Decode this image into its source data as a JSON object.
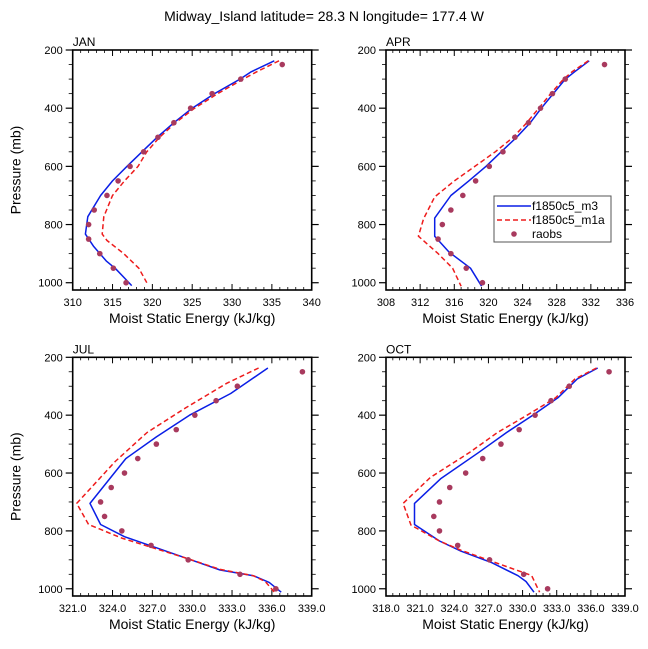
{
  "title": "Midway_Island  latitude= 28.3 N longitude= 177.4 W",
  "colors": {
    "m3": "#0a1ee6",
    "m1a": "#ee1c1c",
    "raobs": "#a83a5e",
    "axis": "#000000"
  },
  "legend": {
    "entries": [
      {
        "name": "f1850c5_m3",
        "style": "solid"
      },
      {
        "name": "f1850c5_m1a",
        "style": "dashed"
      },
      {
        "name": "raobs",
        "style": "marker"
      }
    ],
    "panel": "APR",
    "placement": "center-right"
  },
  "chart_data": [
    {
      "type": "line",
      "panel": "JAN",
      "title": "JAN",
      "xlabel": "Moist Static Energy (kJ/kg)",
      "ylabel": "Pressure (mb)",
      "xlim": [
        310,
        340
      ],
      "ylim": [
        1025,
        200
      ],
      "y_inverted": true,
      "xticks": [
        310,
        315,
        320,
        325,
        330,
        335,
        340
      ],
      "xtick_labels": [
        "310",
        "315",
        "320",
        "325",
        "330",
        "335",
        "340"
      ],
      "yticks": [
        200,
        400,
        600,
        800,
        1000
      ],
      "ytick_labels": [
        "200",
        "400",
        "600",
        "800",
        "1000"
      ],
      "series": [
        {
          "name": "f1850c5_m3",
          "style": "solid",
          "points": [
            [
              335.3,
              237
            ],
            [
              332.4,
              275
            ],
            [
              331.0,
              300
            ],
            [
              327.8,
              350
            ],
            [
              325.0,
              400
            ],
            [
              322.7,
              450
            ],
            [
              320.6,
              500
            ],
            [
              318.7,
              550
            ],
            [
              316.8,
              600
            ],
            [
              315.0,
              650
            ],
            [
              313.5,
              700
            ],
            [
              311.9,
              773
            ],
            [
              311.6,
              833
            ],
            [
              312.6,
              874
            ],
            [
              314.2,
              925
            ],
            [
              315.4,
              952
            ],
            [
              317.4,
              1010
            ]
          ]
        },
        {
          "name": "f1850c5_m1a",
          "style": "dashed",
          "points": [
            [
              335.9,
              237
            ],
            [
              333.1,
              275
            ],
            [
              331.4,
              300
            ],
            [
              328.2,
              350
            ],
            [
              325.3,
              400
            ],
            [
              322.9,
              450
            ],
            [
              320.9,
              500
            ],
            [
              319.3,
              550
            ],
            [
              318.2,
              600
            ],
            [
              316.5,
              650
            ],
            [
              315.0,
              700
            ],
            [
              313.9,
              773
            ],
            [
              313.7,
              833
            ],
            [
              314.3,
              855
            ],
            [
              316.4,
              900
            ],
            [
              318.3,
              950
            ],
            [
              319.3,
              1000
            ]
          ]
        },
        {
          "name": "raobs",
          "style": "marker",
          "points": [
            [
              336.3,
              250
            ],
            [
              331.1,
              300
            ],
            [
              327.5,
              350
            ],
            [
              324.8,
              400
            ],
            [
              322.7,
              450
            ],
            [
              320.7,
              500
            ],
            [
              318.9,
              550
            ],
            [
              317.2,
              600
            ],
            [
              315.7,
              650
            ],
            [
              314.3,
              700
            ],
            [
              312.7,
              750
            ],
            [
              312.0,
              800
            ],
            [
              312.0,
              850
            ],
            [
              313.4,
              900
            ],
            [
              315.1,
              950
            ],
            [
              316.7,
              1000
            ]
          ]
        }
      ]
    },
    {
      "type": "line",
      "panel": "APR",
      "title": "APR",
      "xlabel": "Moist Static Energy (kJ/kg)",
      "ylabel": "",
      "xlim": [
        308,
        336
      ],
      "ylim": [
        1025,
        200
      ],
      "y_inverted": true,
      "xticks": [
        308,
        312,
        316,
        320,
        324,
        328,
        332,
        336
      ],
      "xtick_labels": [
        "308",
        "312",
        "316",
        "320",
        "324",
        "328",
        "332",
        "336"
      ],
      "yticks": [
        200,
        400,
        600,
        800,
        1000
      ],
      "ytick_labels": [
        "200",
        "400",
        "600",
        "800",
        "1000"
      ],
      "series": [
        {
          "name": "f1850c5_m3",
          "style": "solid",
          "points": [
            [
              331.8,
              237
            ],
            [
              330.1,
              275
            ],
            [
              329.0,
              300
            ],
            [
              327.6,
              350
            ],
            [
              326.2,
              400
            ],
            [
              324.9,
              450
            ],
            [
              323.3,
              500
            ],
            [
              321.5,
              550
            ],
            [
              319.7,
              600
            ],
            [
              317.7,
              650
            ],
            [
              315.6,
              700
            ],
            [
              313.7,
              778
            ],
            [
              313.7,
              840
            ],
            [
              315.4,
              895
            ],
            [
              317.9,
              950
            ],
            [
              319.2,
              1012
            ]
          ]
        },
        {
          "name": "f1850c5_m1a",
          "style": "dashed",
          "points": [
            [
              331.7,
              237
            ],
            [
              329.8,
              275
            ],
            [
              328.8,
              300
            ],
            [
              327.3,
              350
            ],
            [
              325.9,
              400
            ],
            [
              324.5,
              450
            ],
            [
              322.9,
              500
            ],
            [
              320.8,
              550
            ],
            [
              318.4,
              600
            ],
            [
              316.0,
              650
            ],
            [
              313.7,
              705
            ],
            [
              312.4,
              780
            ],
            [
              311.8,
              840
            ],
            [
              314.1,
              900
            ],
            [
              315.8,
              950
            ],
            [
              316.8,
              1012
            ]
          ]
        },
        {
          "name": "raobs",
          "style": "marker",
          "points": [
            [
              333.6,
              250
            ],
            [
              329.0,
              300
            ],
            [
              327.5,
              350
            ],
            [
              326.1,
              400
            ],
            [
              324.7,
              450
            ],
            [
              323.1,
              500
            ],
            [
              321.7,
              550
            ],
            [
              320.1,
              600
            ],
            [
              318.5,
              650
            ],
            [
              317.0,
              700
            ],
            [
              315.6,
              750
            ],
            [
              314.6,
              800
            ],
            [
              314.1,
              850
            ],
            [
              315.6,
              900
            ],
            [
              317.4,
              950
            ],
            [
              319.3,
              1000
            ]
          ]
        }
      ]
    },
    {
      "type": "line",
      "panel": "JUL",
      "title": "JUL",
      "xlabel": "Moist Static Energy (kJ/kg)",
      "ylabel": "Pressure (mb)",
      "xlim": [
        321.0,
        339.0
      ],
      "ylim": [
        1025,
        200
      ],
      "y_inverted": true,
      "xticks": [
        321,
        324,
        327,
        330,
        333,
        336,
        339
      ],
      "xtick_labels": [
        "321.0",
        "324.0",
        "327.0",
        "330.0",
        "333.0",
        "336.0",
        "339.0"
      ],
      "yticks": [
        200,
        400,
        600,
        800,
        1000
      ],
      "ytick_labels": [
        "200",
        "400",
        "600",
        "800",
        "1000"
      ],
      "series": [
        {
          "name": "f1850c5_m3",
          "style": "solid",
          "points": [
            [
              335.7,
              237
            ],
            [
              332.9,
              325
            ],
            [
              329.8,
              400
            ],
            [
              327.3,
              475
            ],
            [
              325.0,
              550
            ],
            [
              322.3,
              705
            ],
            [
              323.1,
              778
            ],
            [
              324.9,
              820
            ],
            [
              326.8,
              850
            ],
            [
              329.6,
              895
            ],
            [
              332.1,
              935
            ],
            [
              334.6,
              955
            ],
            [
              335.8,
              978
            ],
            [
              336.7,
              1012
            ]
          ]
        },
        {
          "name": "f1850c5_m1a",
          "style": "dashed",
          "points": [
            [
              335.0,
              237
            ],
            [
              332.6,
              290
            ],
            [
              329.5,
              375
            ],
            [
              326.6,
              460
            ],
            [
              324.2,
              560
            ],
            [
              321.3,
              705
            ],
            [
              322.2,
              778
            ],
            [
              324.7,
              825
            ],
            [
              326.8,
              855
            ],
            [
              329.6,
              895
            ],
            [
              332.1,
              933
            ],
            [
              334.6,
              955
            ],
            [
              335.5,
              975
            ],
            [
              336.2,
              1012
            ]
          ]
        },
        {
          "name": "raobs",
          "style": "marker",
          "points": [
            [
              338.3,
              250
            ],
            [
              333.4,
              300
            ],
            [
              331.8,
              350
            ],
            [
              330.2,
              400
            ],
            [
              328.8,
              450
            ],
            [
              327.3,
              500
            ],
            [
              325.9,
              550
            ],
            [
              324.9,
              600
            ],
            [
              323.9,
              650
            ],
            [
              323.1,
              700
            ],
            [
              323.4,
              750
            ],
            [
              324.7,
              800
            ],
            [
              326.9,
              850
            ],
            [
              329.7,
              900
            ],
            [
              333.6,
              950
            ],
            [
              336.3,
              1000
            ]
          ]
        }
      ]
    },
    {
      "type": "line",
      "panel": "OCT",
      "title": "OCT",
      "xlabel": "Moist Static Energy (kJ/kg)",
      "ylabel": "",
      "xlim": [
        318.0,
        339.0
      ],
      "ylim": [
        1025,
        200
      ],
      "y_inverted": true,
      "xticks": [
        318,
        321,
        324,
        327,
        330,
        333,
        336,
        339
      ],
      "xtick_labels": [
        "318.0",
        "321.0",
        "324.0",
        "327.0",
        "330.0",
        "333.0",
        "336.0",
        "339.0"
      ],
      "yticks": [
        200,
        400,
        600,
        800,
        1000
      ],
      "ytick_labels": [
        "200",
        "400",
        "600",
        "800",
        "1000"
      ],
      "series": [
        {
          "name": "f1850c5_m3",
          "style": "solid",
          "points": [
            [
              336.6,
              237
            ],
            [
              334.8,
              275
            ],
            [
              333.1,
              340
            ],
            [
              330.9,
              400
            ],
            [
              328.6,
              460
            ],
            [
              326.1,
              530
            ],
            [
              322.8,
              620
            ],
            [
              320.5,
              705
            ],
            [
              320.5,
              778
            ],
            [
              322.7,
              835
            ],
            [
              324.6,
              870
            ],
            [
              327.3,
              910
            ],
            [
              329.6,
              955
            ],
            [
              330.3,
              975
            ],
            [
              331.0,
              1012
            ]
          ]
        },
        {
          "name": "f1850c5_m1a",
          "style": "dashed",
          "points": [
            [
              336.5,
              237
            ],
            [
              334.6,
              275
            ],
            [
              332.9,
              340
            ],
            [
              330.4,
              400
            ],
            [
              327.8,
              460
            ],
            [
              325.3,
              530
            ],
            [
              321.9,
              615
            ],
            [
              319.5,
              705
            ],
            [
              320.2,
              780
            ],
            [
              322.7,
              835
            ],
            [
              324.6,
              867
            ],
            [
              327.3,
              905
            ],
            [
              330.5,
              950
            ],
            [
              330.8,
              955
            ],
            [
              331.5,
              1012
            ]
          ]
        },
        {
          "name": "raobs",
          "style": "marker",
          "points": [
            [
              337.6,
              250
            ],
            [
              334.1,
              300
            ],
            [
              332.5,
              350
            ],
            [
              331.1,
              400
            ],
            [
              329.7,
              450
            ],
            [
              328.1,
              500
            ],
            [
              326.5,
              550
            ],
            [
              325.0,
              600
            ],
            [
              323.6,
              650
            ],
            [
              322.7,
              700
            ],
            [
              322.2,
              750
            ],
            [
              322.7,
              800
            ],
            [
              324.3,
              850
            ],
            [
              327.1,
              900
            ],
            [
              330.1,
              950
            ],
            [
              332.2,
              1000
            ]
          ]
        }
      ]
    }
  ]
}
